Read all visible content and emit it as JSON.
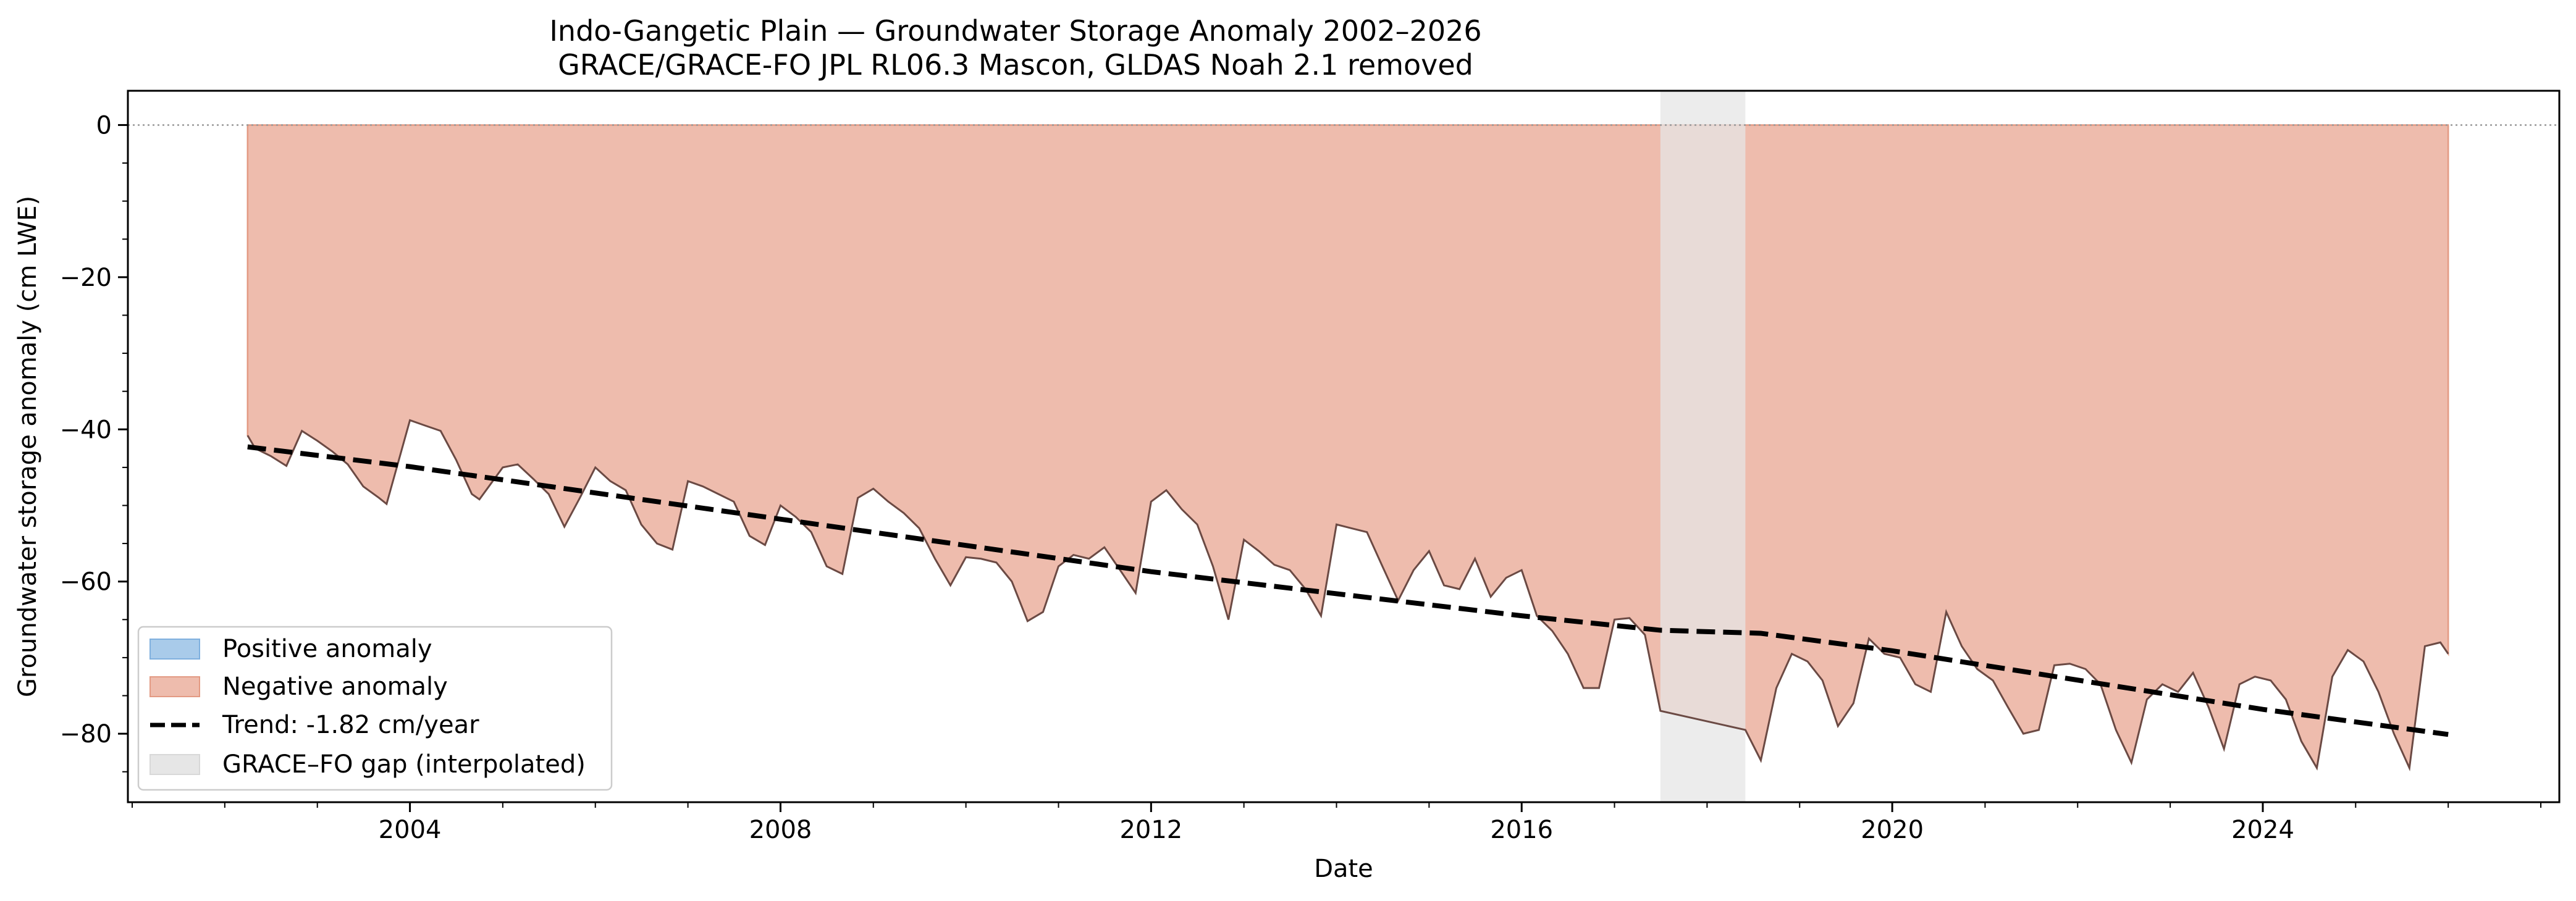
{
  "chart_data": {
    "type": "area",
    "title": "Indo-Gangetic Plain — Groundwater Storage Anomaly 2002–2026",
    "subtitle": "GRACE/GRACE-FO JPL RL06.3 Mascon, GLDAS Noah 2.1 removed",
    "xlabel": "Date",
    "ylabel": "Groundwater storage anomaly (cm LWE)",
    "xlim": [
      "2000-12-15",
      "2027-03-15"
    ],
    "ylim": [
      -89,
      4.5
    ],
    "x_ticks": [
      "2004",
      "2008",
      "2012",
      "2016",
      "2020",
      "2024"
    ],
    "y_ticks": [
      0,
      -20,
      -40,
      -60,
      -80
    ],
    "zero_line": true,
    "grid": false,
    "legend": {
      "position": "lower-left",
      "entries": [
        "Positive anomaly",
        "Negative anomaly",
        "Trend: -1.82 cm/year",
        "GRACE–FO gap (interpolated)"
      ]
    },
    "colors": {
      "positive_fill": "#a9cbea",
      "negative_fill": "#eebcad",
      "negative_edge": "#e39a83",
      "series_line": "#6b4a44",
      "trend_line": "#000000",
      "gap_fill": "#e6e6e6",
      "zero_line": "#999999"
    },
    "gap": {
      "start": "2017-07-01",
      "end": "2018-06-01"
    },
    "trend": {
      "label": "Trend: -1.82 cm/year",
      "x": [
        "2002-04-01",
        "2004-01-01",
        "2008-01-01",
        "2012-01-01",
        "2016-01-01",
        "2017-07-01",
        "2018-08-01",
        "2020-01-01",
        "2024-01-01",
        "2026-01-01"
      ],
      "y": [
        -42.3,
        -44.9,
        -51.8,
        -58.7,
        -64.5,
        -66.4,
        -66.8,
        -69.1,
        -76.8,
        -80.1
      ]
    },
    "series": [
      {
        "name": "",
        "x": [
          "2002-04-01",
          "2002-05-01",
          "2002-07-01",
          "2002-09-01",
          "2002-11-01",
          "2003-01-01",
          "2003-03-01",
          "2003-05-01",
          "2003-07-01",
          "2003-09-01",
          "2003-10-01",
          "2004-01-01",
          "2004-03-01",
          "2004-05-01",
          "2004-07-01",
          "2004-09-01",
          "2004-10-01",
          "2005-01-01",
          "2005-03-01",
          "2005-05-01",
          "2005-07-01",
          "2005-09-01",
          "2005-11-01",
          "2006-01-01",
          "2006-03-01",
          "2006-05-01",
          "2006-07-01",
          "2006-09-01",
          "2006-11-01",
          "2007-01-01",
          "2007-03-01",
          "2007-05-01",
          "2007-07-01",
          "2007-09-01",
          "2007-11-01",
          "2008-01-01",
          "2008-03-01",
          "2008-05-01",
          "2008-07-01",
          "2008-09-01",
          "2008-11-01",
          "2009-01-01",
          "2009-03-01",
          "2009-05-01",
          "2009-07-01",
          "2009-09-01",
          "2009-11-01",
          "2010-01-01",
          "2010-03-01",
          "2010-05-01",
          "2010-07-01",
          "2010-09-01",
          "2010-11-01",
          "2011-01-01",
          "2011-03-01",
          "2011-05-01",
          "2011-07-01",
          "2011-09-01",
          "2011-11-01",
          "2012-01-01",
          "2012-03-01",
          "2012-05-01",
          "2012-07-01",
          "2012-09-01",
          "2012-11-01",
          "2013-01-01",
          "2013-03-01",
          "2013-05-01",
          "2013-07-01",
          "2013-09-01",
          "2013-11-01",
          "2014-01-01",
          "2014-03-01",
          "2014-05-01",
          "2014-07-01",
          "2014-09-01",
          "2014-11-01",
          "2015-01-01",
          "2015-03-01",
          "2015-05-01",
          "2015-07-01",
          "2015-09-01",
          "2015-11-01",
          "2016-01-01",
          "2016-03-01",
          "2016-05-01",
          "2016-07-01",
          "2016-09-01",
          "2016-11-01",
          "2017-01-01",
          "2017-03-01",
          "2017-05-01",
          "2017-07-01",
          "2018-06-01",
          "2018-08-01",
          "2018-10-01",
          "2018-12-01",
          "2019-02-01",
          "2019-04-01",
          "2019-06-01",
          "2019-08-01",
          "2019-10-01",
          "2019-12-01",
          "2020-02-01",
          "2020-04-01",
          "2020-06-01",
          "2020-08-01",
          "2020-10-01",
          "2020-12-01",
          "2021-02-01",
          "2021-04-01",
          "2021-06-01",
          "2021-08-01",
          "2021-10-01",
          "2021-12-01",
          "2022-02-01",
          "2022-04-01",
          "2022-06-01",
          "2022-08-01",
          "2022-10-01",
          "2022-12-01",
          "2023-02-01",
          "2023-04-01",
          "2023-06-01",
          "2023-08-01",
          "2023-10-01",
          "2023-12-01",
          "2024-02-01",
          "2024-04-01",
          "2024-06-01",
          "2024-08-01",
          "2024-10-01",
          "2024-12-01",
          "2025-02-01",
          "2025-04-01",
          "2025-06-01",
          "2025-08-01",
          "2025-10-01",
          "2025-12-01",
          "2026-01-01"
        ],
        "y": [
          -40.8,
          -42.5,
          -43.5,
          -44.8,
          -40.2,
          -41.5,
          -42.9,
          -44.6,
          -47.5,
          -49.0,
          -49.8,
          -38.8,
          -39.5,
          -40.2,
          -44.0,
          -48.5,
          -49.2,
          -45.0,
          -44.6,
          -46.5,
          -48.5,
          -52.8,
          -49.0,
          -45.0,
          -46.8,
          -48.0,
          -52.5,
          -55.0,
          -55.8,
          -46.8,
          -47.5,
          -48.5,
          -49.5,
          -54.0,
          -55.2,
          -50.0,
          -51.5,
          -53.5,
          -58.0,
          -59.0,
          -49.0,
          -47.8,
          -49.5,
          -51.0,
          -53.0,
          -57.0,
          -60.5,
          -56.8,
          -57.0,
          -57.5,
          -60.0,
          -65.2,
          -64.0,
          -58.0,
          -56.5,
          -57.0,
          -55.5,
          -58.5,
          -61.5,
          -49.5,
          -48.0,
          -50.5,
          -52.5,
          -58.0,
          -65.0,
          -54.5,
          -56.0,
          -57.8,
          -58.5,
          -61.0,
          -64.5,
          -52.5,
          -53.0,
          -53.5,
          -58.0,
          -62.5,
          -58.5,
          -56.0,
          -60.5,
          -61.0,
          -57.0,
          -62.0,
          -59.5,
          -58.5,
          -64.5,
          -66.5,
          -69.5,
          -74.0,
          -74.0,
          -65.0,
          -64.8,
          -67.0,
          -77.0,
          -79.5,
          -83.5,
          -74.0,
          -69.5,
          -70.5,
          -73.0,
          -79.0,
          -76.0,
          -67.5,
          -69.5,
          -70.0,
          -73.5,
          -74.5,
          -64.0,
          -68.5,
          -71.5,
          -73.0,
          -76.5,
          -80.0,
          -79.5,
          -71.0,
          -70.8,
          -71.5,
          -73.5,
          -79.5,
          -83.8,
          -75.5,
          -73.5,
          -74.5,
          -72.0,
          -76.5,
          -82.0,
          -73.5,
          -72.5,
          -73.0,
          -75.5,
          -81.0,
          -84.5,
          -72.5,
          -69.0,
          -70.5,
          -74.5,
          -80.0,
          -84.5,
          -68.5,
          -68.0,
          -69.5
        ]
      }
    ]
  }
}
